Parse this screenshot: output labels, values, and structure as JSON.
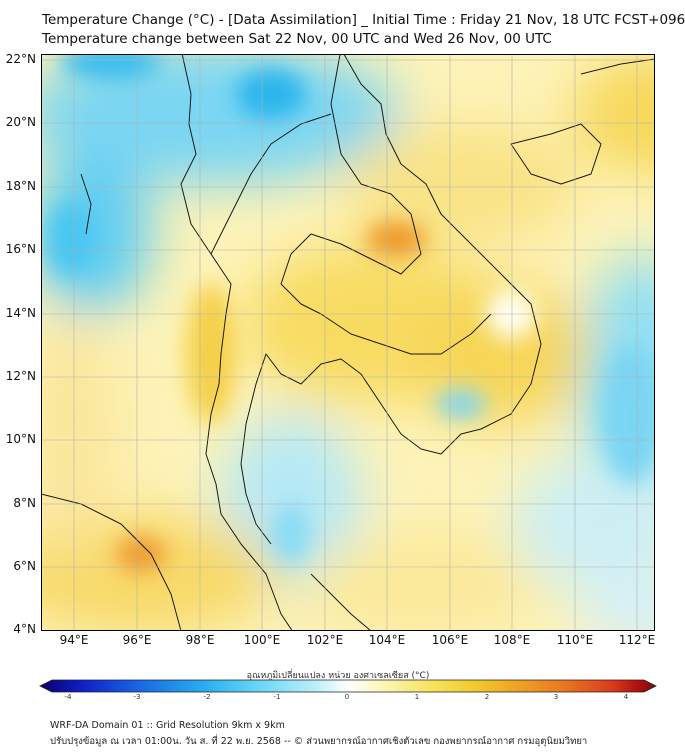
{
  "title_line1": "Temperature Change (°C) - [Data Assimilation] _ Initial Time : Friday 21 Nov, 18 UTC FCST+096",
  "title_line2": "Temperature change between Sat 22 Nov, 00 UTC and Wed 26 Nov, 00 UTC",
  "lat_labels": [
    "22°N",
    "20°N",
    "18°N",
    "16°N",
    "14°N",
    "12°N",
    "10°N",
    "8°N",
    "6°N",
    "4°N"
  ],
  "lon_labels": [
    "94°E",
    "96°E",
    "98°E",
    "100°E",
    "102°E",
    "104°E",
    "106°E",
    "108°E",
    "110°E",
    "112°E"
  ],
  "colorbar": {
    "label": "อุณหภูมิเปลี่ยนแปลง หน่วย องศาเซลเซียส (°C)",
    "ticks": [
      "-4",
      "-3",
      "-2",
      "-1",
      "0",
      "1",
      "2",
      "3",
      "4"
    ],
    "range": [
      -4,
      4
    ],
    "colors": [
      "#08006b",
      "#1020c8",
      "#1a6ee6",
      "#2ab0f0",
      "#6dd9f7",
      "#bdf0f8",
      "#ffffff",
      "#fdf6b0",
      "#f7e25a",
      "#f2c82a",
      "#eea025",
      "#e87120",
      "#d83a1a",
      "#b01010",
      "#7a0a0a"
    ]
  },
  "footer_line1": "WRF-DA Domain 01 :: Grid Resolution 9km x 9km",
  "footer_line2": "ปรับปรุงข้อมูล ณ เวลา 01:00น. วัน ส. ที่ 22 พ.ย. 2568 -- © ส่วนพยากรณ์อากาศเชิงตัวเลข กองพยากรณ์อากาศ กรมอุตุนิยมวิทยา"
}
